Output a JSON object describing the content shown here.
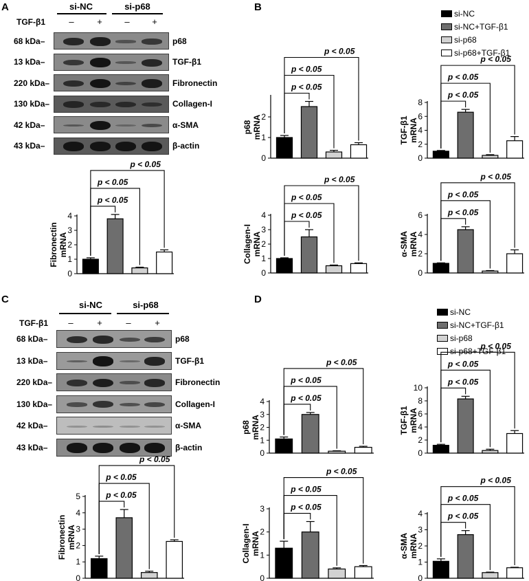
{
  "panels": {
    "A": "A",
    "B": "B",
    "C": "C",
    "D": "D"
  },
  "blots": {
    "groups": [
      "si-NC",
      "si-p68"
    ],
    "treatment_label": "TGF-β1",
    "signs": [
      "–",
      "+",
      "–",
      "+"
    ],
    "A": {
      "rows": [
        {
          "kda": "68 kDa",
          "protein": "p68"
        },
        {
          "kda": "13 kDa",
          "protein": "TGF-β1"
        },
        {
          "kda": "220 kDa",
          "protein": "Fibronectin"
        },
        {
          "kda": "130 kDa",
          "protein": "Collagen-I"
        },
        {
          "kda": "42 kDa",
          "protein": "α-SMA"
        },
        {
          "kda": "43 kDa",
          "protein": "β-actin"
        }
      ]
    },
    "C": {
      "rows": [
        {
          "kda": "68 kDa",
          "protein": "p68"
        },
        {
          "kda": "13 kDa",
          "protein": "TGF-β1"
        },
        {
          "kda": "220 kDa",
          "protein": "Fibronectin"
        },
        {
          "kda": "130 kDa",
          "protein": "Collagen-I"
        },
        {
          "kda": "42 kDa",
          "protein": "α-SMA"
        },
        {
          "kda": "43 kDa",
          "protein": "β-actin"
        }
      ]
    }
  },
  "legend": {
    "colors": [
      "#000000",
      "#6e6e6e",
      "#d2d2d2",
      "#ffffff"
    ],
    "B": [
      "si-NC",
      "si-NC+TGF-β1",
      "si-p68",
      "si-p68+TGF-β1"
    ],
    "D": [
      "si-NC",
      "si-NC+TGF-β1",
      "si-p68",
      "si-p68+TGF-β1"
    ]
  },
  "chart_data": [
    {
      "id": "A-fibronectin",
      "type": "bar",
      "ylabel": [
        "Fibronectin",
        "mRNA"
      ],
      "ylim": [
        0,
        4
      ],
      "yticks": [
        0,
        1,
        2,
        3,
        4
      ],
      "values": [
        1.0,
        3.8,
        0.4,
        1.5
      ],
      "errors": [
        0.1,
        0.3,
        0.05,
        0.15
      ],
      "annotations": [
        "p < 0.05",
        "p < 0.05",
        "p < 0.05"
      ]
    },
    {
      "id": "B-p68",
      "type": "bar",
      "ylabel": [
        "p68",
        "mRNA"
      ],
      "ylim": [
        0,
        3
      ],
      "yticks": [
        0,
        1,
        2
      ],
      "values": [
        1.0,
        2.5,
        0.3,
        0.65
      ],
      "errors": [
        0.1,
        0.25,
        0.08,
        0.1
      ],
      "annotations": [
        "p < 0.05",
        "p < 0.05",
        "p < 0.05"
      ]
    },
    {
      "id": "B-tgfb1",
      "type": "bar",
      "ylabel": [
        "TGF-β1",
        "mRNA"
      ],
      "ylim": [
        0,
        8
      ],
      "yticks": [
        0,
        2,
        4,
        6,
        8
      ],
      "values": [
        1.0,
        6.6,
        0.4,
        2.5
      ],
      "errors": [
        0.1,
        0.4,
        0.1,
        0.6
      ],
      "annotations": [
        "p < 0.05",
        "p < 0.05",
        "p < 0.05"
      ]
    },
    {
      "id": "B-collagen",
      "type": "bar",
      "ylabel": [
        "Collagen-I",
        "mRNA"
      ],
      "ylim": [
        0,
        4
      ],
      "yticks": [
        0,
        1,
        2,
        3,
        4
      ],
      "values": [
        1.0,
        2.5,
        0.5,
        0.65
      ],
      "errors": [
        0.05,
        0.5,
        0.05,
        0.05
      ],
      "annotations": [
        "p < 0.05",
        "p < 0.05",
        "p < 0.05"
      ]
    },
    {
      "id": "B-asma",
      "type": "bar",
      "ylabel": [
        "α-SMA",
        "mRNA"
      ],
      "ylim": [
        0,
        6
      ],
      "yticks": [
        0,
        2,
        4,
        6
      ],
      "values": [
        1.0,
        4.5,
        0.2,
        2.0
      ],
      "errors": [
        0.05,
        0.3,
        0.05,
        0.4
      ],
      "annotations": [
        "p < 0.05",
        "p < 0.05",
        "p < 0.05"
      ]
    },
    {
      "id": "C-fibronectin",
      "type": "bar",
      "ylabel": [
        "Fibronectin",
        "mRNA"
      ],
      "ylim": [
        0,
        5
      ],
      "yticks": [
        0,
        1,
        2,
        3,
        4,
        5
      ],
      "values": [
        1.2,
        3.7,
        0.35,
        2.25
      ],
      "errors": [
        0.15,
        0.5,
        0.08,
        0.1
      ],
      "annotations": [
        "p < 0.05",
        "p < 0.05",
        "p < 0.05"
      ]
    },
    {
      "id": "D-p68",
      "type": "bar",
      "ylabel": [
        "p68",
        "mRNA"
      ],
      "ylim": [
        0,
        4
      ],
      "yticks": [
        0,
        1,
        2,
        3,
        4
      ],
      "values": [
        1.1,
        3.0,
        0.15,
        0.45
      ],
      "errors": [
        0.15,
        0.15,
        0.03,
        0.08
      ],
      "annotations": [
        "p < 0.05",
        "p < 0.05",
        "p < 0.05"
      ]
    },
    {
      "id": "D-tgfb1",
      "type": "bar",
      "ylabel": [
        "TGF-β1",
        "mRNA"
      ],
      "ylim": [
        0,
        10
      ],
      "yticks": [
        0,
        2,
        4,
        6,
        8,
        10
      ],
      "values": [
        1.2,
        8.3,
        0.4,
        3.0
      ],
      "errors": [
        0.15,
        0.4,
        0.2,
        0.45
      ],
      "annotations": [
        "p < 0.05",
        "p < 0.05",
        "p < 0.05"
      ]
    },
    {
      "id": "D-collagen",
      "type": "bar",
      "ylabel": [
        "Collagen-I",
        "mRNA"
      ],
      "ylim": [
        0,
        3
      ],
      "yticks": [
        0,
        1,
        2,
        3
      ],
      "values": [
        1.3,
        2.0,
        0.4,
        0.5
      ],
      "errors": [
        0.3,
        0.45,
        0.05,
        0.05
      ],
      "annotations": [
        "p < 0.05",
        "p < 0.05",
        "p < 0.05"
      ]
    },
    {
      "id": "D-asma",
      "type": "bar",
      "ylabel": [
        "α-SMA",
        "mRNA"
      ],
      "ylim": [
        0,
        4
      ],
      "yticks": [
        0,
        1,
        2,
        3,
        4
      ],
      "values": [
        1.05,
        2.7,
        0.35,
        0.65
      ],
      "errors": [
        0.15,
        0.25,
        0.03,
        0.03
      ],
      "annotations": [
        "p < 0.05",
        "p < 0.05",
        "p < 0.05"
      ]
    }
  ]
}
